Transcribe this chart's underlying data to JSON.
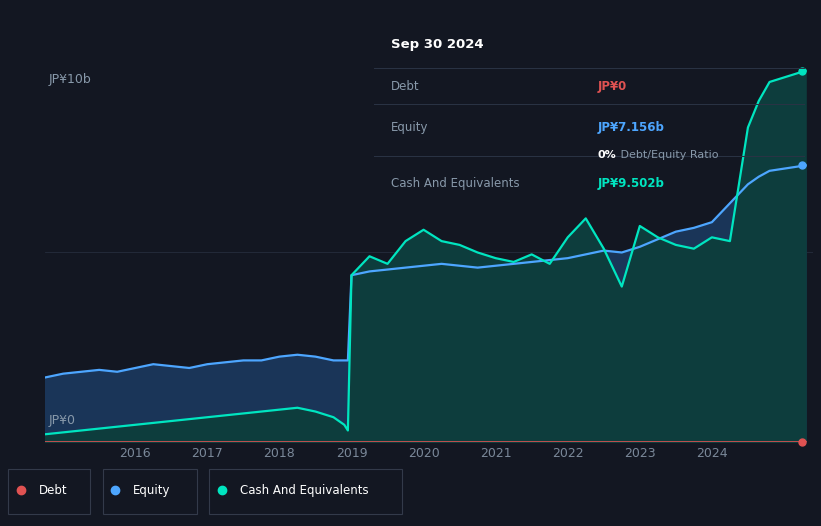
{
  "bg_color": "#131722",
  "plot_bg_color": "#131722",
  "grid_color": "#252d3d",
  "debt_color": "#e05252",
  "equity_color": "#4da6ff",
  "cash_color": "#00e5c0",
  "equity_fill": "#1a3558",
  "cash_fill": "#0d3d3d",
  "xmin": 2014.75,
  "xmax": 2025.4,
  "ymin": 0,
  "ymax": 10,
  "xticks": [
    2016,
    2017,
    2018,
    2019,
    2020,
    2021,
    2022,
    2023,
    2024
  ],
  "ylabel_top": "JP¥10b",
  "ylabel_bottom": "JP¥0",
  "legend_items": [
    {
      "label": "Debt",
      "color": "#e05252"
    },
    {
      "label": "Equity",
      "color": "#4da6ff"
    },
    {
      "label": "Cash And Equivalents",
      "color": "#00e5c0"
    }
  ],
  "infobox": {
    "date": "Sep 30 2024",
    "debt_label": "Debt",
    "debt_value": "JP¥0",
    "debt_value_color": "#e05252",
    "equity_label": "Equity",
    "equity_value": "JP¥7.156b",
    "equity_value_color": "#4da6ff",
    "ratio_value": "0%",
    "ratio_label": " Debt/Equity Ratio",
    "cash_label": "Cash And Equivalents",
    "cash_value": "JP¥9.502b",
    "cash_value_color": "#00e5c0"
  },
  "time_points": [
    2014.75,
    2015.0,
    2015.25,
    2015.5,
    2015.75,
    2016.0,
    2016.25,
    2016.5,
    2016.75,
    2017.0,
    2017.25,
    2017.5,
    2017.75,
    2018.0,
    2018.25,
    2018.5,
    2018.75,
    2018.9,
    2018.95,
    2019.0,
    2019.25,
    2019.5,
    2019.75,
    2020.0,
    2020.25,
    2020.5,
    2020.75,
    2021.0,
    2021.25,
    2021.5,
    2021.75,
    2022.0,
    2022.25,
    2022.5,
    2022.75,
    2023.0,
    2023.25,
    2023.5,
    2023.75,
    2024.0,
    2024.25,
    2024.5,
    2024.65,
    2024.8,
    2025.3
  ],
  "equity_values": [
    1.7,
    1.8,
    1.85,
    1.9,
    1.85,
    1.95,
    2.05,
    2.0,
    1.95,
    2.05,
    2.1,
    2.15,
    2.15,
    2.25,
    2.3,
    2.25,
    2.15,
    2.15,
    2.15,
    4.4,
    4.5,
    4.55,
    4.6,
    4.65,
    4.7,
    4.65,
    4.6,
    4.65,
    4.7,
    4.75,
    4.8,
    4.85,
    4.95,
    5.05,
    5.0,
    5.15,
    5.35,
    5.55,
    5.65,
    5.8,
    6.3,
    6.8,
    7.0,
    7.156,
    7.3
  ],
  "cash_values": [
    0.2,
    0.25,
    0.3,
    0.35,
    0.4,
    0.45,
    0.5,
    0.55,
    0.6,
    0.65,
    0.7,
    0.75,
    0.8,
    0.85,
    0.9,
    0.8,
    0.65,
    0.45,
    0.3,
    4.4,
    4.9,
    4.7,
    5.3,
    5.6,
    5.3,
    5.2,
    5.0,
    4.85,
    4.75,
    4.95,
    4.7,
    5.4,
    5.9,
    5.1,
    4.1,
    5.7,
    5.4,
    5.2,
    5.1,
    5.4,
    5.3,
    8.3,
    9.0,
    9.502,
    9.8
  ],
  "debt_values": [
    0.0,
    0.0,
    0.0,
    0.0,
    0.0,
    0.0,
    0.0,
    0.0,
    0.0,
    0.0,
    0.0,
    0.0,
    0.0,
    0.0,
    0.0,
    0.0,
    0.0,
    0.0,
    0.0,
    0.0,
    0.0,
    0.0,
    0.0,
    0.0,
    0.0,
    0.0,
    0.0,
    0.0,
    0.0,
    0.0,
    0.0,
    0.0,
    0.0,
    0.0,
    0.0,
    0.0,
    0.0,
    0.0,
    0.0,
    0.0,
    0.0,
    0.0,
    0.0,
    0.0,
    0.0
  ]
}
